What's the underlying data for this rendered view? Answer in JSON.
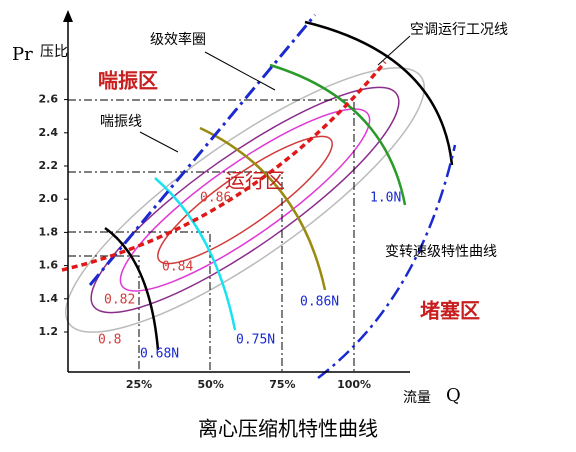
{
  "title": "离心压缩机特性曲线",
  "axes": {
    "y_label_en": "Pr",
    "y_label": "压比",
    "x_label": "流量",
    "x_label_en": "Q",
    "yticks": [
      "1.2",
      "1.4",
      "1.6",
      "1.8",
      "2.0",
      "2.2",
      "2.4",
      "2.6"
    ],
    "xticks": [
      "25%",
      "50%",
      "75%",
      "100%"
    ]
  },
  "regions": {
    "surge": "喘振区",
    "operating": "运行区",
    "choke": "堵塞区"
  },
  "annotations": {
    "efficiency": "级效率圈",
    "ac_line": "空调运行工况线",
    "surge_line": "喘振线",
    "speed_curves": "变转速级特性曲线"
  },
  "efficiency_labels": [
    "0.8",
    "0.82",
    "0.84",
    "0.86"
  ],
  "speed_labels": [
    "0.68N",
    "0.75N",
    "0.86N",
    "1.0N"
  ]
}
